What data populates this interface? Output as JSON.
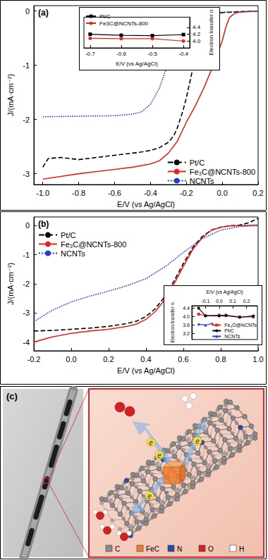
{
  "chart_data": [
    {
      "type": "line",
      "label": "(a)",
      "xlabel": "E/V (vs Ag/AgCl)",
      "ylabel": "J/(mA·cm⁻²)",
      "xlim": [
        -1.05,
        0.2
      ],
      "xticks": [
        {
          "value": -1.0,
          "label": "-1.0"
        },
        -0.8,
        -0.6,
        -0.4,
        -0.2,
        {
          "value": 0,
          "label": "0.0"
        },
        0.2
      ],
      "ylim": [
        -3.2,
        0.1
      ],
      "yticks": [
        -3,
        -2,
        -1,
        0
      ],
      "grid": false,
      "legend": "lower right",
      "series": [
        {
          "name": "Pt/C",
          "color": "#000000",
          "line_style": "dashed",
          "marker": "none",
          "x": [
            -1.0,
            -0.97,
            -0.9,
            -0.8,
            -0.7,
            -0.6,
            -0.5,
            -0.45,
            -0.4,
            -0.35,
            -0.3,
            -0.27,
            -0.25,
            -0.22,
            -0.2,
            -0.17,
            -0.15,
            -0.12,
            -0.1,
            -0.05,
            0.0,
            0.1,
            0.2
          ],
          "values": [
            -2.88,
            -2.72,
            -2.7,
            -2.74,
            -2.7,
            -2.66,
            -2.62,
            -2.6,
            -2.57,
            -2.52,
            -2.42,
            -2.3,
            -2.15,
            -1.85,
            -1.6,
            -1.15,
            -0.85,
            -0.45,
            -0.25,
            -0.08,
            -0.03,
            -0.01,
            0
          ]
        },
        {
          "name": "Fe₃C@NCNTs-800",
          "color": "#e8231e",
          "line_style": "solid",
          "marker": "none",
          "x": [
            -1.0,
            -0.9,
            -0.8,
            -0.7,
            -0.6,
            -0.5,
            -0.4,
            -0.35,
            -0.3,
            -0.25,
            -0.2,
            -0.15,
            -0.1,
            -0.05,
            0.0,
            0.02,
            0.04,
            0.07,
            0.1,
            0.2
          ],
          "values": [
            -3.1,
            -3.05,
            -3.0,
            -2.96,
            -2.92,
            -2.88,
            -2.82,
            -2.76,
            -2.62,
            -2.4,
            -2.05,
            -1.75,
            -1.4,
            -1.0,
            -0.55,
            -0.3,
            -0.12,
            -0.04,
            -0.02,
            0
          ]
        },
        {
          "name": "NCNTs",
          "color": "#1f3fcf",
          "line_style": "dotted",
          "marker": "none",
          "x": [
            -1.0,
            -0.8,
            -0.6,
            -0.5,
            -0.45,
            -0.4,
            -0.35,
            -0.3,
            -0.25,
            -0.2,
            -0.15,
            -0.1,
            0.0,
            0.1,
            0.2
          ],
          "values": [
            -1.95,
            -1.94,
            -1.93,
            -1.9,
            -1.86,
            -1.72,
            -1.42,
            -0.95,
            -0.5,
            -0.2,
            -0.08,
            -0.04,
            -0.02,
            -0.01,
            0
          ]
        }
      ]
    },
    {
      "type": "line",
      "xlabel": "E/V (vs Ag/AgCl)",
      "ylabel": "Electron transfer n",
      "xlim": [
        -0.72,
        -0.38
      ],
      "xticks": [
        -0.7,
        -0.6,
        -0.5,
        -0.4
      ],
      "ylim": [
        3.8,
        4.7
      ],
      "yticks": [
        {
          "value": 4,
          "label": "4.0"
        },
        4.2,
        4.4
      ],
      "grid": false,
      "legend": "upper left",
      "x": [
        -0.7,
        -0.6,
        -0.5,
        -0.4
      ],
      "series": [
        {
          "name": "Pt/C",
          "color": "#000000",
          "line_style": "solid",
          "marker": "square",
          "values": [
            4.2,
            4.17,
            4.16,
            4.19
          ]
        },
        {
          "name": "Fe3C@NCNTs-800",
          "color": "#e8231e",
          "line_style": "solid",
          "marker": "circle",
          "values": [
            4.08,
            4.07,
            4.07,
            4.0
          ]
        }
      ]
    },
    {
      "type": "line",
      "label": "(b)",
      "xlabel": "E/V (vs Ag/AgCl)",
      "ylabel": "J/(mA·cm⁻²)",
      "xlim": [
        -0.2,
        1.0
      ],
      "xticks": [
        -0.2,
        {
          "value": 0,
          "label": "0.0"
        },
        0.2,
        0.4,
        0.6,
        0.8,
        {
          "value": 1,
          "label": "1.0"
        }
      ],
      "ylim": [
        -4.3,
        0.3
      ],
      "yticks": [
        -4,
        -3,
        -2,
        -1,
        0
      ],
      "grid": false,
      "legend": "upper left",
      "series": [
        {
          "name": "Pt/C",
          "color": "#000000",
          "line_style": "dashed",
          "marker": "none",
          "x": [
            -0.2,
            -0.1,
            0.0,
            0.1,
            0.2,
            0.3,
            0.35,
            0.4,
            0.45,
            0.5,
            0.55,
            0.6,
            0.65,
            0.7,
            0.75,
            0.8,
            0.85,
            0.9,
            0.95,
            1.0
          ],
          "values": [
            -3.62,
            -3.6,
            -3.56,
            -3.52,
            -3.46,
            -3.36,
            -3.28,
            -3.12,
            -2.85,
            -2.45,
            -1.9,
            -1.3,
            -0.75,
            -0.38,
            -0.15,
            -0.05,
            0.0,
            0.02,
            0.1,
            0.25
          ]
        },
        {
          "name": "Fe₃C@NCNTs-800",
          "color": "#e8231e",
          "line_style": "solid",
          "marker": "none",
          "x": [
            -0.2,
            -0.1,
            0.0,
            0.1,
            0.2,
            0.3,
            0.35,
            0.4,
            0.45,
            0.5,
            0.55,
            0.6,
            0.65,
            0.7,
            0.75,
            0.8,
            0.85,
            0.9,
            0.95,
            1.0
          ],
          "values": [
            -4.0,
            -3.82,
            -3.7,
            -3.62,
            -3.56,
            -3.46,
            -3.38,
            -3.22,
            -2.95,
            -2.55,
            -2.0,
            -1.4,
            -0.82,
            -0.42,
            -0.16,
            -0.05,
            -0.01,
            0.0,
            0.01,
            0.02
          ]
        },
        {
          "name": "NCNTs",
          "color": "#1f3fcf",
          "line_style": "dotted",
          "marker": "none",
          "x": [
            -0.2,
            -0.1,
            0.0,
            0.1,
            0.2,
            0.3,
            0.4,
            0.5,
            0.6,
            0.7,
            0.8,
            0.9,
            1.0
          ],
          "values": [
            -3.3,
            -2.9,
            -2.62,
            -2.42,
            -2.25,
            -2.06,
            -1.82,
            -1.42,
            -0.92,
            -0.45,
            -0.15,
            -0.03,
            0.0
          ]
        }
      ]
    },
    {
      "type": "line",
      "xlabel": "E/V (vs Ag/AgCl)",
      "ylabel": "Electron transfer n",
      "xlim": [
        -0.2,
        0.28
      ],
      "xticks": [
        -0.1,
        {
          "value": 0,
          "label": "0.0"
        },
        0.1,
        0.2
      ],
      "ylim": [
        2.9,
        4.5
      ],
      "yticks": [
        3.2,
        3.6,
        {
          "value": 4,
          "label": "4.0"
        },
        4.4
      ],
      "grid": false,
      "legend": "lower right",
      "series": [
        {
          "name": "Fe₃O@NCNTs",
          "color": "#e8231e",
          "line_style": "solid",
          "marker": "square",
          "x": [
            -0.15,
            -0.1,
            0.0,
            0.05,
            0.15,
            0.25
          ],
          "values": [
            4.1,
            4.03,
            4.05,
            4.05,
            3.97,
            3.97
          ]
        },
        {
          "name": "Pt/C",
          "color": "#000000",
          "line_style": "solid",
          "marker": "circle",
          "x": [
            -0.15,
            -0.1,
            0.0,
            0.05,
            0.15,
            0.25
          ],
          "values": [
            4.38,
            4.02,
            4.02,
            4.03,
            3.95,
            4.02
          ]
        },
        {
          "name": "NCNTs",
          "color": "#1f3fcf",
          "line_style": "solid",
          "marker": "triangle",
          "x": [
            -0.15,
            -0.1,
            -0.05
          ],
          "values": [
            3.63,
            3.58,
            3.66
          ]
        }
      ]
    }
  ],
  "diagram": {
    "label": "(c)",
    "electron_label": "e",
    "legend": [
      {
        "label": "C",
        "color": "#8a8a8a"
      },
      {
        "label": "FeC",
        "color": "#f07a2a"
      },
      {
        "label": "N",
        "color": "#2a4aa8"
      },
      {
        "label": "O",
        "color": "#d42020"
      },
      {
        "label": "H",
        "color": "#ffffff"
      }
    ]
  }
}
